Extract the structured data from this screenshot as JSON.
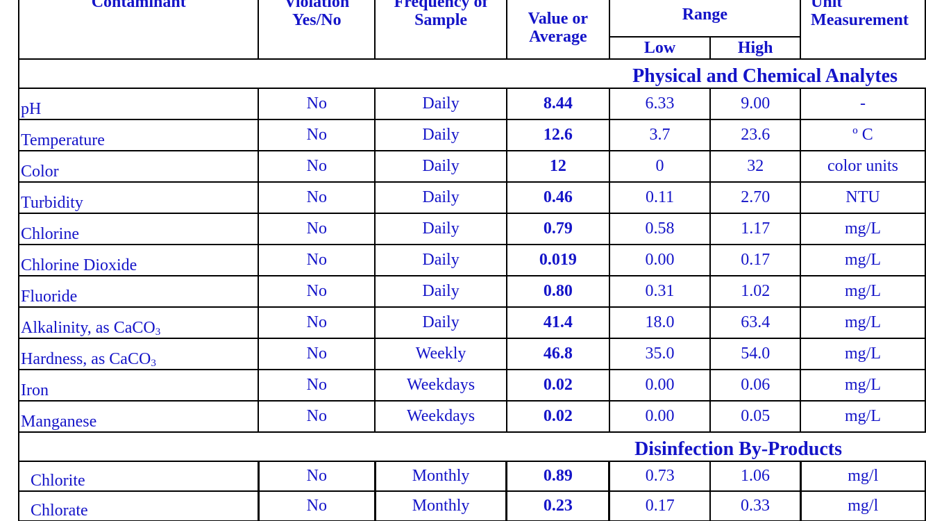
{
  "header": {
    "contaminant": "Contaminant",
    "violation_top": "Violation",
    "violation_bottom": "Yes/No",
    "frequency_top": "Frequency of",
    "frequency_bottom": "Sample",
    "value_top": "Value or",
    "value_bottom": "Average",
    "range": "Range",
    "low": "Low",
    "high": "High",
    "unit_top": "Unit",
    "unit_bottom": "Measurement"
  },
  "sections": [
    {
      "title": "Physical and Chemical Analytes",
      "rows": [
        {
          "name": "pH",
          "violation": "No",
          "frequency": "Daily",
          "value": "8.44",
          "low": "6.33",
          "high": "9.00",
          "unit": "-"
        },
        {
          "name": "Temperature",
          "violation": "No",
          "frequency": "Daily",
          "value": "12.6",
          "low": "3.7",
          "high": "23.6",
          "unit": "º C"
        },
        {
          "name": "Color",
          "violation": "No",
          "frequency": "Daily",
          "value": "12",
          "low": "0",
          "high": "32",
          "unit": "color units"
        },
        {
          "name": "Turbidity",
          "violation": "No",
          "frequency": "Daily",
          "value": "0.46",
          "low": "0.11",
          "high": "2.70",
          "unit": "NTU"
        },
        {
          "name": "Chlorine",
          "violation": "No",
          "frequency": "Daily",
          "value": "0.79",
          "low": "0.58",
          "high": "1.17",
          "unit": "mg/L"
        },
        {
          "name": "Chlorine Dioxide",
          "violation": "No",
          "frequency": "Daily",
          "value": "0.019",
          "low": "0.00",
          "high": "0.17",
          "unit": "mg/L"
        },
        {
          "name": "Fluoride",
          "violation": "No",
          "frequency": "Daily",
          "value": "0.80",
          "low": "0.31",
          "high": "1.02",
          "unit": "mg/L"
        },
        {
          "name_main": "Alkalinity, as CaCO",
          "name_sub": "3",
          "violation": "No",
          "frequency": "Daily",
          "value": "41.4",
          "low": "18.0",
          "high": "63.4",
          "unit": "mg/L"
        },
        {
          "name_main": "Hardness, as CaCO",
          "name_sub": "3",
          "violation": "No",
          "frequency": "Weekly",
          "value": "46.8",
          "low": "35.0",
          "high": "54.0",
          "unit": "mg/L"
        },
        {
          "name": "Iron",
          "violation": "No",
          "frequency": "Weekdays",
          "value": "0.02",
          "low": "0.00",
          "high": "0.06",
          "unit": "mg/L"
        },
        {
          "name": "Manganese",
          "violation": "No",
          "frequency": "Weekdays",
          "value": "0.02",
          "low": "0.00",
          "high": "0.05",
          "unit": "mg/L"
        }
      ]
    },
    {
      "title": "Disinfection By-Products",
      "rows": [
        {
          "name": "Chlorite",
          "violation": "No",
          "frequency": "Monthly",
          "value": "0.89",
          "low": "0.73",
          "high": "1.06",
          "unit": "mg/l"
        },
        {
          "name": "Chlorate",
          "violation": "No",
          "frequency": "Monthly",
          "value": "0.23",
          "low": "0.17",
          "high": "0.33",
          "unit": "mg/l"
        }
      ]
    }
  ]
}
